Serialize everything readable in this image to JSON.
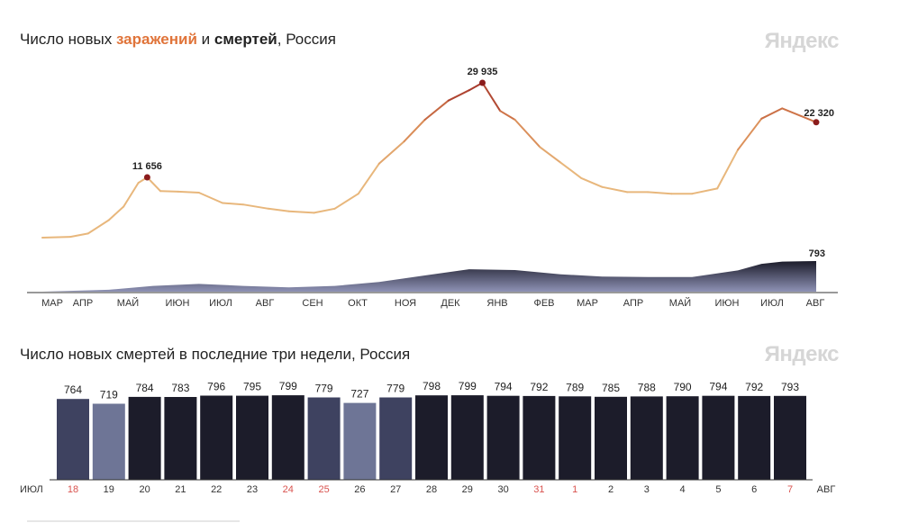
{
  "chart1": {
    "title_parts": [
      "Число новых ",
      "заражений",
      " и ",
      "смертей",
      ", Россия"
    ],
    "brand": "Яндекс",
    "chart_data": {
      "type": "line",
      "title": "Число новых заражений и смертей, Россия",
      "months": [
        "МАР",
        "АПР",
        "МАЙ",
        "ИЮН",
        "ИЮЛ",
        "АВГ",
        "СЕН",
        "ОКТ",
        "НОЯ",
        "ДЕК",
        "ЯНВ",
        "ФЕВ",
        "МАР",
        "АПР",
        "МАЙ",
        "ИЮН",
        "ИЮЛ",
        "АВГ"
      ],
      "series": [
        {
          "type": "line",
          "points": [
            [
              "2020-03-01",
              0
            ],
            [
              "2020-03-20",
              150
            ],
            [
              "2020-04-01",
              800
            ],
            [
              "2020-04-15",
              3400
            ],
            [
              "2020-04-25",
              6000
            ],
            [
              "2020-05-05",
              10600
            ],
            [
              "2020-05-11",
              11656
            ],
            [
              "2020-05-20",
              9000
            ],
            [
              "2020-06-01",
              8900
            ],
            [
              "2020-06-15",
              8700
            ],
            [
              "2020-07-01",
              6700
            ],
            [
              "2020-07-15",
              6400
            ],
            [
              "2020-08-01",
              5600
            ],
            [
              "2020-08-15",
              5100
            ],
            [
              "2020-09-01",
              4800
            ],
            [
              "2020-09-15",
              5600
            ],
            [
              "2020-10-01",
              8500
            ],
            [
              "2020-10-15",
              14300
            ],
            [
              "2020-11-01",
              18600
            ],
            [
              "2020-11-15",
              22800
            ],
            [
              "2020-12-01",
              26500
            ],
            [
              "2020-12-15",
              28500
            ],
            [
              "2020-12-24",
              29935
            ],
            [
              "2021-01-05",
              24500
            ],
            [
              "2021-01-15",
              22800
            ],
            [
              "2021-02-01",
              17500
            ],
            [
              "2021-02-15",
              14500
            ],
            [
              "2021-03-01",
              11500
            ],
            [
              "2021-03-15",
              9800
            ],
            [
              "2021-04-01",
              8800
            ],
            [
              "2021-04-15",
              8800
            ],
            [
              "2021-05-01",
              8500
            ],
            [
              "2021-05-15",
              8500
            ],
            [
              "2021-06-01",
              9500
            ],
            [
              "2021-06-15",
              17000
            ],
            [
              "2021-07-01",
              23000
            ],
            [
              "2021-07-15",
              25000
            ],
            [
              "2021-08-07",
              22320
            ]
          ]
        },
        {
          "type": "area",
          "points": [
            [
              "2020-03-01",
              0
            ],
            [
              "2020-04-15",
              50
            ],
            [
              "2020-05-15",
              150
            ],
            [
              "2020-06-15",
              200
            ],
            [
              "2020-07-15",
              150
            ],
            [
              "2020-08-15",
              110
            ],
            [
              "2020-09-15",
              150
            ],
            [
              "2020-10-15",
              250
            ],
            [
              "2020-11-15",
              420
            ],
            [
              "2020-12-15",
              580
            ],
            [
              "2021-01-15",
              560
            ],
            [
              "2021-02-15",
              450
            ],
            [
              "2021-03-15",
              390
            ],
            [
              "2021-04-15",
              380
            ],
            [
              "2021-05-15",
              380
            ],
            [
              "2021-06-15",
              550
            ],
            [
              "2021-07-01",
              720
            ],
            [
              "2021-07-15",
              780
            ],
            [
              "2021-08-07",
              793
            ]
          ]
        }
      ],
      "annotations": [
        {
          "x": "2020-05-11",
          "y": 11656,
          "label": "11 656"
        },
        {
          "x": "2020-12-24",
          "y": 29935,
          "label": "29 935"
        },
        {
          "x": "2021-08-07",
          "y": 22320,
          "label": "22 320"
        },
        {
          "x": "2021-08-07",
          "y": 793,
          "label": "793"
        }
      ],
      "colors": {
        "low": "#e8b77c",
        "mid": "#d7834f",
        "high": "#a83a2c",
        "peak_dot": "#8b1c1c",
        "deaths_top": "#1c1c2a",
        "deaths_bottom": "#8e92b5"
      }
    }
  },
  "chart2": {
    "title": "Число новых смертей в последние три недели, Россия",
    "brand": "Яндекс",
    "chart_data": {
      "type": "bar",
      "title": "Число новых смертей в последние три недели, Россия",
      "categories": [
        "18",
        "19",
        "20",
        "21",
        "22",
        "23",
        "24",
        "25",
        "26",
        "27",
        "28",
        "29",
        "30",
        "31",
        "1",
        "2",
        "3",
        "4",
        "5",
        "6",
        "7"
      ],
      "values": [
        764,
        719,
        784,
        783,
        796,
        795,
        799,
        779,
        727,
        779,
        798,
        799,
        794,
        792,
        789,
        785,
        788,
        790,
        794,
        792,
        793
      ],
      "value_labels": [
        "764",
        "719",
        "784",
        "783",
        "796",
        "795",
        "799",
        "779",
        "727",
        "779",
        "798",
        "799",
        "794",
        "792",
        "789",
        "785",
        "788",
        "790",
        "794",
        "792",
        "793"
      ],
      "weekend_categories": [
        "18",
        "24",
        "25",
        "31",
        "1",
        "7"
      ],
      "month_start": "ИЮЛ",
      "month_end": "АВГ",
      "ylim": [
        0,
        800
      ],
      "colors": {
        "dark": "#1c1c2a",
        "medium": "#3e4260",
        "light": "#6e7596",
        "weekend_text": "#d9534f"
      }
    }
  }
}
